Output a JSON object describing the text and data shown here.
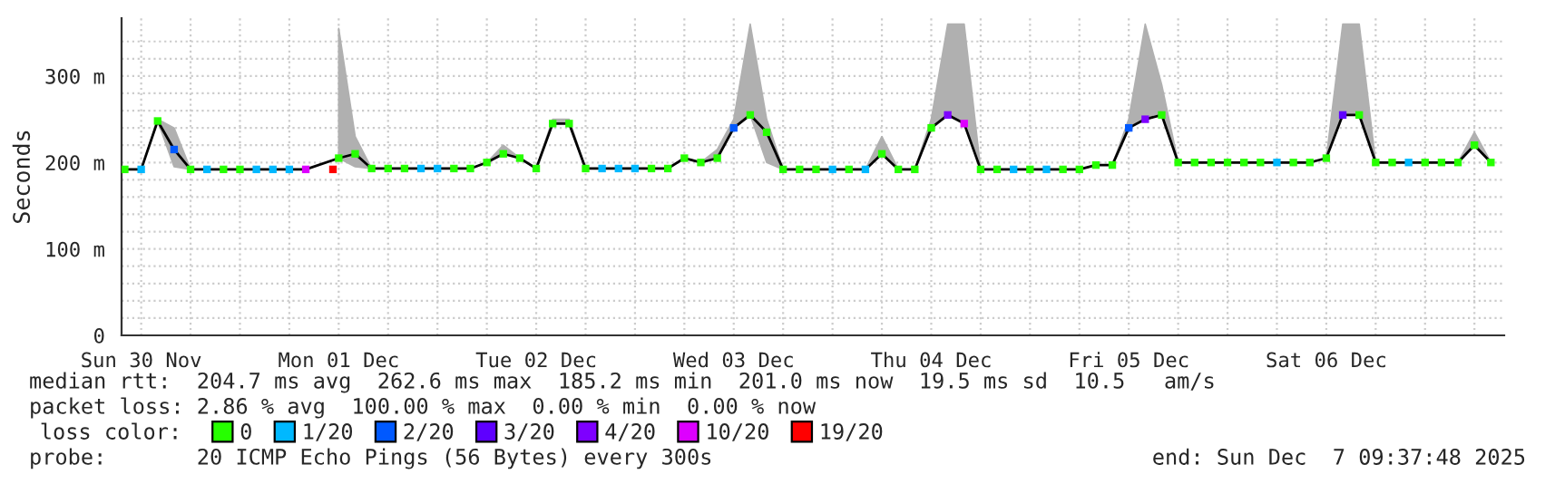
{
  "chart_data": {
    "type": "line",
    "ylabel": "Seconds",
    "xlim": [
      "2025-11-30T09:37",
      "2025-12-07T09:37"
    ],
    "ylim": [
      0,
      367
    ],
    "xticks": [
      {
        "value": "2025-11-30T12:00",
        "label": "Sun 30 Nov"
      },
      {
        "value": "2025-11-30T18:00",
        "label": null
      },
      {
        "value": "2025-12-01T00:00",
        "label": null
      },
      {
        "value": "2025-12-01T06:00",
        "label": null
      },
      {
        "value": "2025-12-01T12:00",
        "label": "Mon 01 Dec"
      },
      {
        "value": "2025-12-01T18:00",
        "label": null
      },
      {
        "value": "2025-12-02T00:00",
        "label": null
      },
      {
        "value": "2025-12-02T06:00",
        "label": null
      },
      {
        "value": "2025-12-02T12:00",
        "label": "Tue 02 Dec"
      },
      {
        "value": "2025-12-02T18:00",
        "label": null
      },
      {
        "value": "2025-12-03T00:00",
        "label": null
      },
      {
        "value": "2025-12-03T06:00",
        "label": null
      },
      {
        "value": "2025-12-03T12:00",
        "label": "Wed 03 Dec"
      },
      {
        "value": "2025-12-03T18:00",
        "label": null
      },
      {
        "value": "2025-12-04T00:00",
        "label": null
      },
      {
        "value": "2025-12-04T06:00",
        "label": null
      },
      {
        "value": "2025-12-04T12:00",
        "label": "Thu 04 Dec"
      },
      {
        "value": "2025-12-04T18:00",
        "label": null
      },
      {
        "value": "2025-12-05T00:00",
        "label": null
      },
      {
        "value": "2025-12-05T06:00",
        "label": null
      },
      {
        "value": "2025-12-05T12:00",
        "label": "Fri 05 Dec"
      },
      {
        "value": "2025-12-05T18:00",
        "label": null
      },
      {
        "value": "2025-12-06T00:00",
        "label": null
      },
      {
        "value": "2025-12-06T06:00",
        "label": null
      },
      {
        "value": "2025-12-06T12:00",
        "label": "Sat 06 Dec"
      },
      {
        "value": "2025-12-06T18:00",
        "label": null
      },
      {
        "value": "2025-12-07T00:00",
        "label": null
      },
      {
        "value": "2025-12-07T06:00",
        "label": null
      }
    ],
    "yticks": [
      {
        "value": 0,
        "label": "0"
      },
      {
        "value": 20,
        "label": null
      },
      {
        "value": 40,
        "label": null
      },
      {
        "value": 60,
        "label": null
      },
      {
        "value": 80,
        "label": null
      },
      {
        "value": 100,
        "label": "100 m"
      },
      {
        "value": 120,
        "label": null
      },
      {
        "value": 140,
        "label": null
      },
      {
        "value": 160,
        "label": null
      },
      {
        "value": 180,
        "label": null
      },
      {
        "value": 200,
        "label": "200 m"
      },
      {
        "value": 220,
        "label": null
      },
      {
        "value": 240,
        "label": null
      },
      {
        "value": 260,
        "label": null
      },
      {
        "value": 280,
        "label": null
      },
      {
        "value": 300,
        "label": "300 m"
      },
      {
        "value": 320,
        "label": null
      },
      {
        "value": 340,
        "label": null
      }
    ],
    "grid": true,
    "legend": "bottom",
    "legend_title": "loss color:",
    "marker": "none",
    "series": [
      {
        "color": "#000000",
        "x": [
          "2025-11-30T10:00",
          "2025-11-30T12:00",
          "2025-11-30T14:00",
          "2025-11-30T16:00",
          "2025-11-30T18:00",
          "2025-11-30T20:00",
          "2025-11-30T22:00",
          "2025-12-01T00:00",
          "2025-12-01T02:00",
          "2025-12-01T04:00",
          "2025-12-01T06:00",
          "2025-12-01T08:00",
          "2025-12-01T10:00",
          "2025-12-01T12:00",
          "2025-12-01T14:00",
          "2025-12-01T16:00",
          "2025-12-01T18:00",
          "2025-12-01T20:00",
          "2025-12-01T22:00",
          "2025-12-02T00:00",
          "2025-12-02T02:00",
          "2025-12-02T04:00",
          "2025-12-02T06:00",
          "2025-12-02T08:00",
          "2025-12-02T10:00",
          "2025-12-02T12:00",
          "2025-12-02T14:00",
          "2025-12-02T16:00",
          "2025-12-02T18:00",
          "2025-12-02T20:00",
          "2025-12-02T22:00",
          "2025-12-03T00:00",
          "2025-12-03T02:00",
          "2025-12-03T04:00",
          "2025-12-03T06:00",
          "2025-12-03T08:00",
          "2025-12-03T10:00",
          "2025-12-03T12:00",
          "2025-12-03T14:00",
          "2025-12-03T16:00",
          "2025-12-03T18:00",
          "2025-12-03T20:00",
          "2025-12-03T22:00",
          "2025-12-04T00:00",
          "2025-12-04T02:00",
          "2025-12-04T04:00",
          "2025-12-04T06:00",
          "2025-12-04T08:00",
          "2025-12-04T10:00",
          "2025-12-04T12:00",
          "2025-12-04T14:00",
          "2025-12-04T16:00",
          "2025-12-04T18:00",
          "2025-12-04T20:00",
          "2025-12-04T22:00",
          "2025-12-05T00:00",
          "2025-12-05T02:00",
          "2025-12-05T04:00",
          "2025-12-05T06:00",
          "2025-12-05T08:00",
          "2025-12-05T10:00",
          "2025-12-05T12:00",
          "2025-12-05T14:00",
          "2025-12-05T16:00",
          "2025-12-05T18:00",
          "2025-12-05T20:00",
          "2025-12-05T22:00",
          "2025-12-06T00:00",
          "2025-12-06T02:00",
          "2025-12-06T04:00",
          "2025-12-06T06:00",
          "2025-12-06T08:00",
          "2025-12-06T10:00",
          "2025-12-06T12:00",
          "2025-12-06T14:00",
          "2025-12-06T16:00",
          "2025-12-06T18:00",
          "2025-12-06T20:00",
          "2025-12-06T22:00",
          "2025-12-07T00:00",
          "2025-12-07T02:00",
          "2025-12-07T04:00",
          "2025-12-07T06:00",
          "2025-12-07T08:00"
        ],
        "values": [
          192,
          192,
          248,
          215,
          192,
          192,
          192,
          192,
          192,
          192,
          192,
          192,
          null,
          205,
          210,
          193,
          193,
          193,
          193,
          193,
          193,
          193,
          200,
          210,
          205,
          193,
          245,
          245,
          193,
          193,
          193,
          193,
          193,
          193,
          205,
          200,
          205,
          240,
          255,
          235,
          192,
          192,
          192,
          192,
          192,
          192,
          210,
          192,
          192,
          240,
          255,
          245,
          192,
          192,
          192,
          192,
          192,
          192,
          192,
          197,
          197,
          240,
          250,
          255,
          200,
          200,
          200,
          200,
          200,
          200,
          200,
          200,
          200,
          205,
          255,
          255,
          200,
          200,
          200,
          200,
          200,
          200,
          220,
          200
        ],
        "upper": [
          192,
          192,
          250,
          240,
          192,
          192,
          192,
          192,
          192,
          192,
          192,
          192,
          null,
          355,
          230,
          193,
          193,
          193,
          193,
          193,
          193,
          193,
          200,
          220,
          205,
          193,
          250,
          250,
          193,
          193,
          193,
          193,
          193,
          193,
          205,
          200,
          215,
          250,
          360,
          250,
          192,
          192,
          192,
          192,
          192,
          192,
          230,
          192,
          192,
          250,
          360,
          360,
          192,
          192,
          192,
          192,
          192,
          192,
          192,
          197,
          197,
          250,
          360,
          290,
          200,
          200,
          200,
          200,
          200,
          200,
          200,
          200,
          200,
          205,
          360,
          360,
          200,
          200,
          200,
          200,
          200,
          200,
          235,
          200
        ],
        "lower": [
          192,
          192,
          248,
          195,
          192,
          192,
          192,
          192,
          192,
          192,
          192,
          192,
          null,
          205,
          195,
          193,
          193,
          193,
          193,
          193,
          193,
          193,
          200,
          210,
          205,
          193,
          245,
          245,
          193,
          193,
          193,
          193,
          193,
          193,
          205,
          200,
          205,
          240,
          255,
          200,
          192,
          192,
          192,
          192,
          192,
          192,
          210,
          192,
          192,
          240,
          255,
          245,
          192,
          192,
          192,
          192,
          192,
          192,
          192,
          197,
          197,
          240,
          250,
          255,
          200,
          200,
          200,
          200,
          200,
          200,
          200,
          200,
          200,
          205,
          255,
          255,
          200,
          200,
          200,
          200,
          200,
          200,
          220,
          200
        ]
      },
      {
        "type": "scatter",
        "name": "0",
        "color": "#26ff00",
        "marker": "square",
        "x": [
          "2025-11-30T10:00",
          "2025-11-30T14:00",
          "2025-11-30T18:00",
          "2025-11-30T22:00",
          "2025-12-01T00:00",
          "2025-12-01T12:00",
          "2025-12-01T14:00",
          "2025-12-01T16:00",
          "2025-12-01T18:00",
          "2025-12-01T20:00",
          "2025-12-02T02:00",
          "2025-12-02T04:00",
          "2025-12-02T06:00",
          "2025-12-02T08:00",
          "2025-12-02T10:00",
          "2025-12-02T12:00",
          "2025-12-02T14:00",
          "2025-12-02T16:00",
          "2025-12-02T18:00",
          "2025-12-03T02:00",
          "2025-12-03T04:00",
          "2025-12-03T06:00",
          "2025-12-03T08:00",
          "2025-12-03T10:00",
          "2025-12-03T14:00",
          "2025-12-03T16:00",
          "2025-12-03T18:00",
          "2025-12-03T20:00",
          "2025-12-03T22:00",
          "2025-12-04T02:00",
          "2025-12-04T06:00",
          "2025-12-04T08:00",
          "2025-12-04T10:00",
          "2025-12-04T12:00",
          "2025-12-04T18:00",
          "2025-12-04T20:00",
          "2025-12-05T00:00",
          "2025-12-05T04:00",
          "2025-12-05T06:00",
          "2025-12-05T08:00",
          "2025-12-05T10:00",
          "2025-12-05T16:00",
          "2025-12-05T18:00",
          "2025-12-05T20:00",
          "2025-12-05T22:00",
          "2025-12-06T00:00",
          "2025-12-06T02:00",
          "2025-12-06T04:00",
          "2025-12-06T08:00",
          "2025-12-06T10:00",
          "2025-12-06T12:00",
          "2025-12-06T16:00",
          "2025-12-06T18:00",
          "2025-12-06T20:00",
          "2025-12-07T00:00",
          "2025-12-07T02:00",
          "2025-12-07T04:00",
          "2025-12-07T06:00",
          "2025-12-07T08:00"
        ],
        "values": [
          192,
          248,
          192,
          192,
          192,
          205,
          210,
          193,
          193,
          193,
          193,
          193,
          200,
          210,
          205,
          193,
          245,
          245,
          193,
          193,
          193,
          205,
          200,
          205,
          255,
          235,
          192,
          192,
          192,
          192,
          210,
          192,
          192,
          240,
          192,
          192,
          192,
          192,
          192,
          197,
          197,
          255,
          200,
          200,
          200,
          200,
          200,
          200,
          200,
          200,
          205,
          255,
          200,
          200,
          200,
          200,
          200,
          220,
          200
        ]
      },
      {
        "type": "scatter",
        "name": "1/20",
        "color": "#00b8ff",
        "marker": "square",
        "x": [
          "2025-11-30T12:00",
          "2025-11-30T20:00",
          "2025-12-01T02:00",
          "2025-12-01T04:00",
          "2025-12-01T06:00",
          "2025-12-01T22:00",
          "2025-12-02T00:00",
          "2025-12-02T20:00",
          "2025-12-02T22:00",
          "2025-12-03T00:00",
          "2025-12-04T00:00",
          "2025-12-04T04:00",
          "2025-12-04T22:00",
          "2025-12-05T02:00",
          "2025-12-06T06:00",
          "2025-12-06T22:00"
        ],
        "values": [
          192,
          192,
          192,
          192,
          192,
          193,
          193,
          193,
          193,
          193,
          192,
          192,
          192,
          192,
          200,
          200
        ]
      },
      {
        "type": "scatter",
        "name": "2/20",
        "color": "#0059ff",
        "marker": "square",
        "x": [
          "2025-11-30T16:00",
          "2025-12-03T12:00",
          "2025-12-05T12:00"
        ],
        "values": [
          215,
          240,
          240
        ]
      },
      {
        "type": "scatter",
        "name": "3/20",
        "color": "#5e00ff",
        "marker": "square",
        "x": [
          "2025-12-06T14:00"
        ],
        "values": [
          255
        ]
      },
      {
        "type": "scatter",
        "name": "4/20",
        "color": "#7e00ff",
        "marker": "square",
        "x": [
          "2025-12-04T14:00",
          "2025-12-05T14:00"
        ],
        "values": [
          255,
          250
        ]
      },
      {
        "type": "scatter",
        "name": "10/20",
        "color": "#dd00ff",
        "marker": "square",
        "x": [
          "2025-12-01T08:00",
          "2025-12-04T16:00"
        ],
        "values": [
          192,
          245
        ]
      },
      {
        "type": "scatter",
        "name": "19/20",
        "color": "#ff0000",
        "marker": "square",
        "x": [
          "2025-12-01T11:18"
        ],
        "values": [
          192
        ]
      }
    ],
    "annotations": [
      "median rtt:  204.7 ms avg  262.6 ms max  185.2 ms min  201.0 ms now  19.5 ms sd  10.5   am/s",
      "packet loss: 2.86 % avg  100.00 % max  0.00 % min  0.00 % now",
      "probe:       20 ICMP Echo Pings (56 Bytes) every 300s",
      "end: Sun Dec  7 09:37:48 2025"
    ]
  }
}
